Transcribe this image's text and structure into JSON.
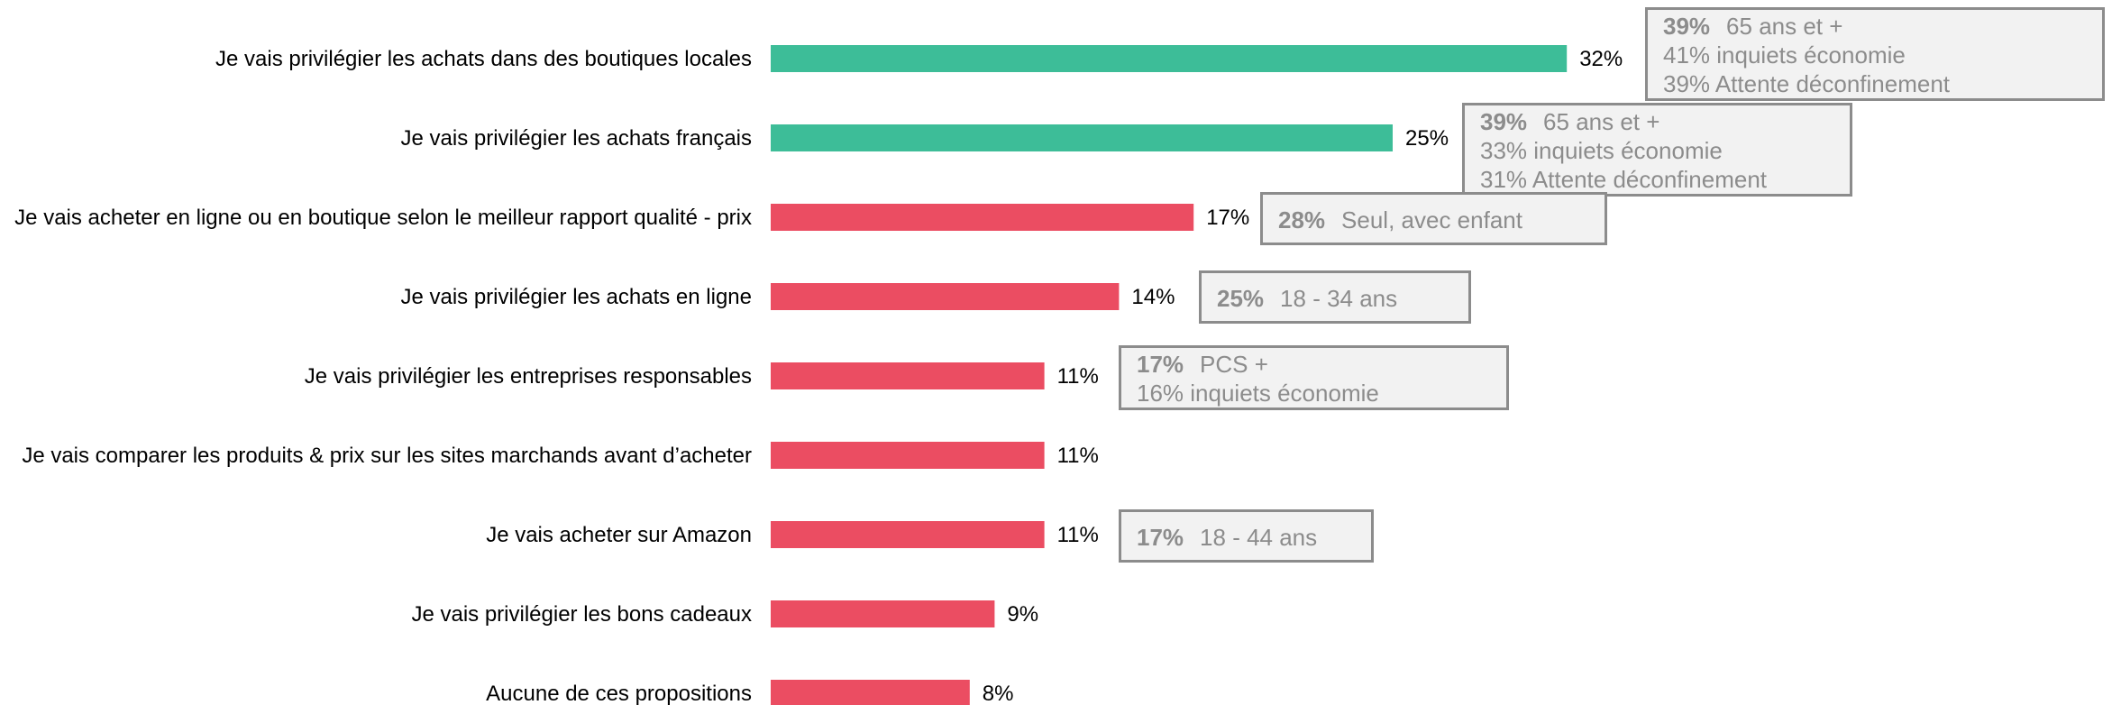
{
  "chart_data": {
    "type": "bar",
    "orientation": "horizontal",
    "categories": [
      "Je vais privilégier les achats dans des boutiques locales",
      "Je vais privilégier les achats français",
      "Je vais acheter en ligne ou en boutique selon le meilleur rapport qualité - prix",
      "Je vais privilégier les achats en ligne",
      "Je vais privilégier les entreprises responsables",
      "Je vais comparer les produits & prix sur les sites marchands avant d’acheter",
      "Je vais acheter sur Amazon",
      "Je vais privilégier les bons cadeaux",
      "Aucune de ces propositions"
    ],
    "values": [
      32,
      25,
      17,
      14,
      11,
      11,
      11,
      9,
      8
    ],
    "value_labels": [
      "32%",
      "25%",
      "17%",
      "14%",
      "11%",
      "11%",
      "11%",
      "9%",
      "8%"
    ],
    "bar_colors": [
      "#3dbd98",
      "#3dbd98",
      "#eb4d62",
      "#eb4d62",
      "#eb4d62",
      "#eb4d62",
      "#eb4d62",
      "#eb4d62",
      "#eb4d62"
    ],
    "grid": false,
    "legend": "none",
    "annotations": [
      {
        "bar": 0,
        "lines": [
          {
            "strong": "39%",
            "text": "65 ans et +"
          },
          {
            "strong": "",
            "text": "41% inquiets économie"
          },
          {
            "strong": "",
            "text": "39% Attente déconfinement"
          }
        ]
      },
      {
        "bar": 1,
        "lines": [
          {
            "strong": "39%",
            "text": "65 ans et +"
          },
          {
            "strong": "",
            "text": "33% inquiets économie"
          },
          {
            "strong": "",
            "text": "31% Attente déconfinement"
          }
        ]
      },
      {
        "bar": 2,
        "lines": [
          {
            "strong": "28%",
            "text": "Seul, avec enfant"
          }
        ]
      },
      {
        "bar": 3,
        "lines": [
          {
            "strong": "25%",
            "text": "18 - 34 ans"
          }
        ]
      },
      {
        "bar": 4,
        "lines": [
          {
            "strong": "17%",
            "text": "PCS +"
          },
          {
            "strong": "",
            "text": "16% inquiets économie"
          }
        ]
      },
      {
        "bar": 6,
        "lines": [
          {
            "strong": "17%",
            "text": "18 - 44 ans"
          }
        ]
      }
    ]
  }
}
